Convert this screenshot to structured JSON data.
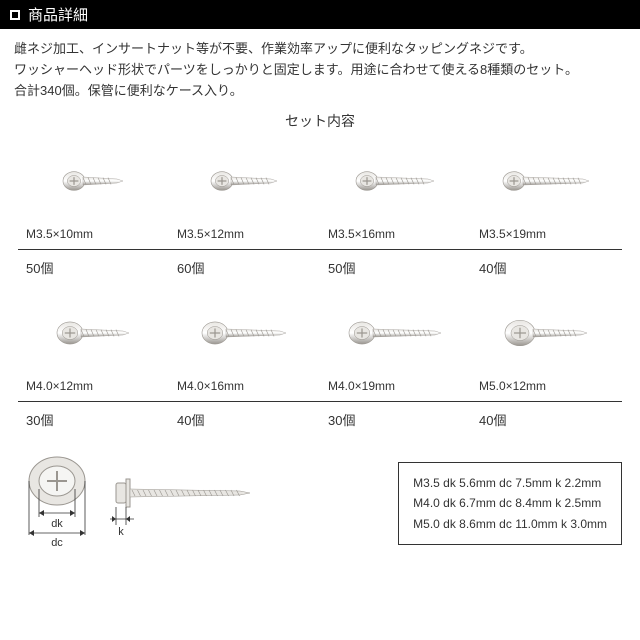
{
  "header": {
    "title": "商品詳細"
  },
  "description": {
    "line1": "雌ネジ加工、インサートナット等が不要、作業効率アップに便利なタッピングネジです。",
    "line2": "ワッシャーヘッド形状でパーツをしっかりと固定します。用途に合わせて使える8種類のセット。",
    "line3": "合計340個。保管に便利なケース入り。"
  },
  "set_title": "セット内容",
  "screws_row1": [
    {
      "size": "M3.5×10mm",
      "qty": "50個",
      "len": 34
    },
    {
      "size": "M3.5×12mm",
      "qty": "60個",
      "len": 40
    },
    {
      "size": "M3.5×16mm",
      "qty": "50個",
      "len": 52
    },
    {
      "size": "M3.5×19mm",
      "qty": "40個",
      "len": 60
    }
  ],
  "screws_row2": [
    {
      "size": "M4.0×12mm",
      "qty": "30個",
      "len": 42
    },
    {
      "size": "M4.0×16mm",
      "qty": "40個",
      "len": 54
    },
    {
      "size": "M4.0×19mm",
      "qty": "30個",
      "len": 62
    },
    {
      "size": "M5.0×12mm",
      "qty": "40個",
      "len": 48
    }
  ],
  "diagram": {
    "dk_label": "dk",
    "dc_label": "dc",
    "k_label": "k"
  },
  "spec_table": {
    "rows": [
      "M3.5  dk 5.6mm  dc 7.5mm  k 2.2mm",
      "M4.0  dk 6.7mm  dc 8.4mm  k 2.5mm",
      "M5.0  dk 8.6mm  dc 11.0mm  k 3.0mm"
    ]
  },
  "colors": {
    "header_bg": "#000000",
    "header_fg": "#ffffff",
    "text": "#333333",
    "divider": "#333333",
    "spec_border": "#333333",
    "screw_light": "#e8e6e2",
    "screw_dark": "#9a9690"
  }
}
